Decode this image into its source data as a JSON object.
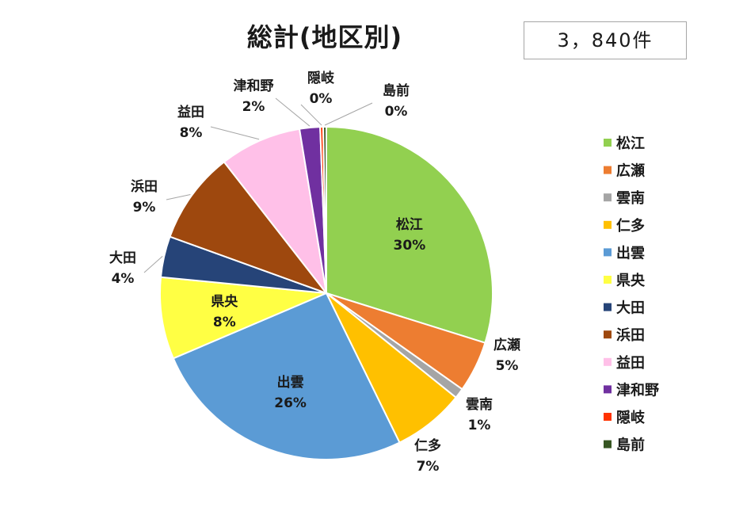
{
  "chart_data": {
    "type": "pie",
    "title": "総計(地区別)",
    "total_label": "3，840件",
    "legend_position": "right",
    "slices": [
      {
        "name": "松江",
        "percent": 30,
        "label": "30%",
        "color": "#92d050"
      },
      {
        "name": "広瀬",
        "percent": 5,
        "label": "5%",
        "color": "#ed7d31"
      },
      {
        "name": "雲南",
        "percent": 1,
        "label": "1%",
        "color": "#a5a5a5"
      },
      {
        "name": "仁多",
        "percent": 7,
        "label": "7%",
        "color": "#ffc000"
      },
      {
        "name": "出雲",
        "percent": 26,
        "label": "26%",
        "color": "#5b9bd5"
      },
      {
        "name": "県央",
        "percent": 8,
        "label": "8%",
        "color": "#ffff44"
      },
      {
        "name": "大田",
        "percent": 4,
        "label": "4%",
        "color": "#264478"
      },
      {
        "name": "浜田",
        "percent": 9,
        "label": "9%",
        "color": "#9e480e"
      },
      {
        "name": "益田",
        "percent": 8,
        "label": "8%",
        "color": "#ffc0e8"
      },
      {
        "name": "津和野",
        "percent": 2,
        "label": "2%",
        "color": "#7030a0"
      },
      {
        "name": "隠岐",
        "percent": 0,
        "label": "0%",
        "color": "#ff3300"
      },
      {
        "name": "島前",
        "percent": 0,
        "label": "0%",
        "color": "#375623"
      }
    ]
  }
}
